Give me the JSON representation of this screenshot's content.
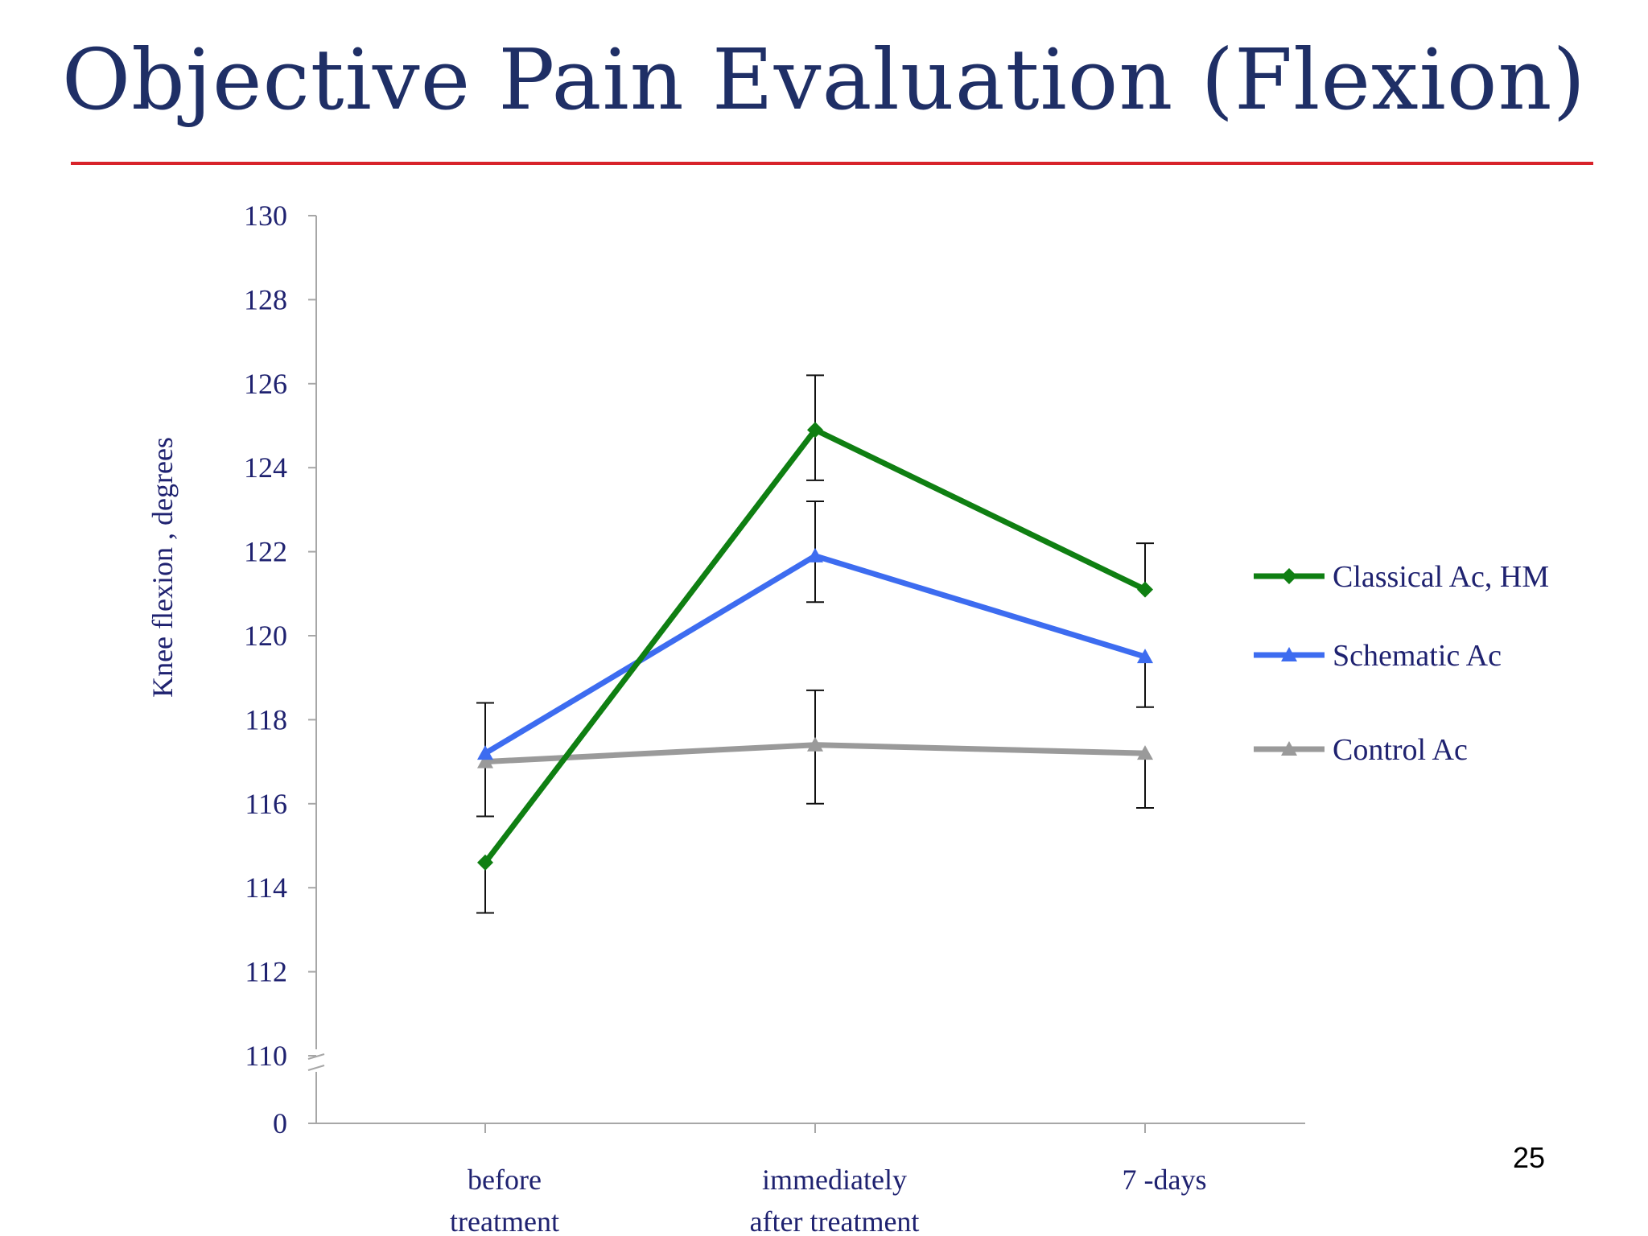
{
  "slide": {
    "title": "Objective Pain Evaluation (Flexion)",
    "page_number": "25",
    "accent_color": "#d8232a",
    "title_color": "#1f2f66"
  },
  "chart_data": {
    "type": "line",
    "ylabel": "Knee  flexion , degrees",
    "xlabel": "",
    "y_ticks": [
      "0",
      "110",
      "112",
      "114",
      "116",
      "118",
      "120",
      "122",
      "124",
      "126",
      "128",
      "130"
    ],
    "ylim": [
      110,
      130
    ],
    "y_axis_break": "0 to 110",
    "categories": [
      {
        "line1": "before",
        "line2": "treatment"
      },
      {
        "line1": "immediately",
        "line2": "after   treatment"
      },
      {
        "line1": "7 -days",
        "line2": ""
      }
    ],
    "series": [
      {
        "name": "Classical Ac, HM",
        "color": "#0f7f12",
        "marker": "diamond",
        "values": [
          114.6,
          124.9,
          121.1
        ],
        "error_low": [
          113.4,
          123.7,
          null
        ],
        "error_high": [
          null,
          126.2,
          122.2
        ]
      },
      {
        "name": "Schematic Ac",
        "color": "#3d6cf0",
        "marker": "triangle",
        "values": [
          117.2,
          121.9,
          119.5
        ],
        "error_low": [
          null,
          120.8,
          118.3
        ],
        "error_high": [
          118.4,
          123.2,
          null
        ]
      },
      {
        "name": " Control Ac",
        "color": "#9a9a9a",
        "marker": "triangle",
        "values": [
          117.0,
          117.4,
          117.2
        ],
        "error_low": [
          115.7,
          116.0,
          115.9
        ],
        "error_high": [
          null,
          118.7,
          null
        ]
      }
    ],
    "legend_position": "right",
    "grid": false
  }
}
